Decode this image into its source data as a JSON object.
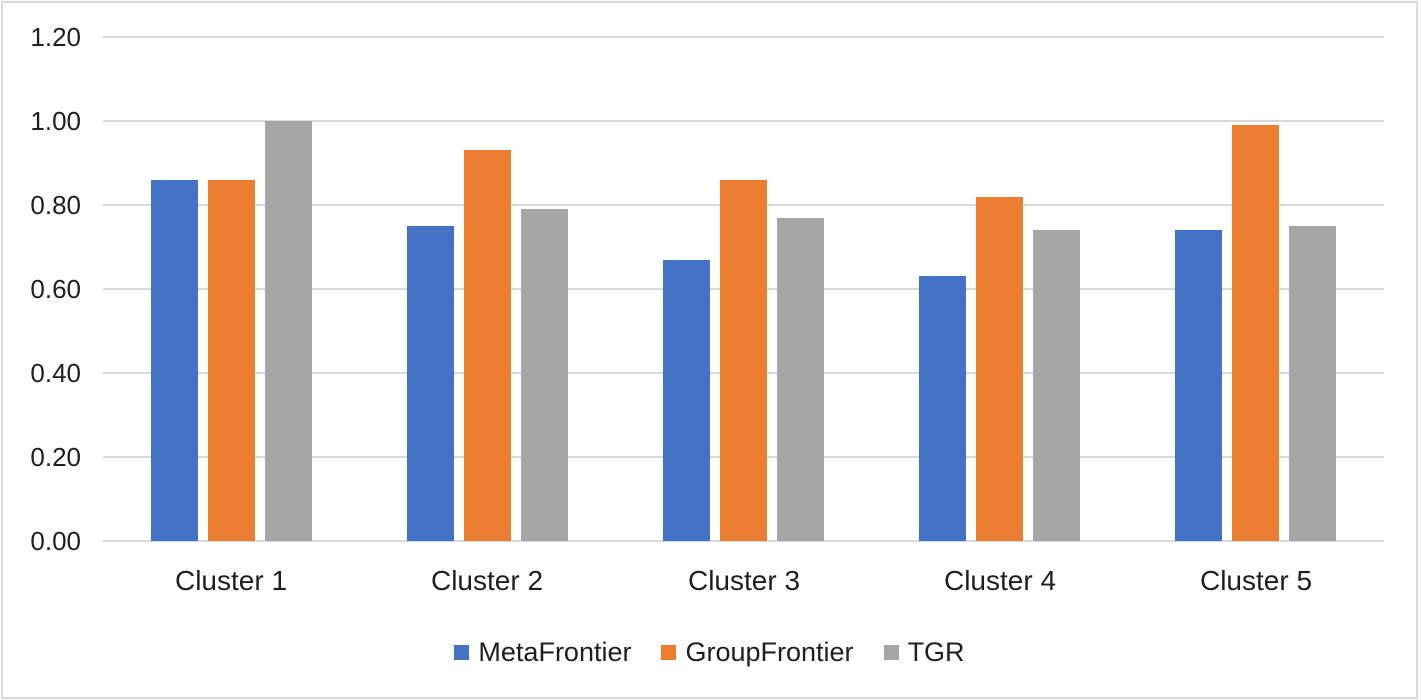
{
  "chart_data": {
    "type": "bar",
    "title": "",
    "xlabel": "",
    "ylabel": "",
    "categories": [
      "Cluster 1",
      "Cluster 2",
      "Cluster 3",
      "Cluster 4",
      "Cluster 5"
    ],
    "series": [
      {
        "name": "MetaFrontier",
        "color": "#4472C4",
        "values": [
          0.86,
          0.75,
          0.67,
          0.63,
          0.74
        ]
      },
      {
        "name": "GroupFrontier",
        "color": "#ED7D31",
        "values": [
          0.86,
          0.93,
          0.86,
          0.82,
          0.99
        ]
      },
      {
        "name": "TGR",
        "color": "#A5A5A5",
        "values": [
          1.0,
          0.79,
          0.77,
          0.74,
          0.75
        ]
      }
    ],
    "ylim": [
      0,
      1.2
    ],
    "ytick_step": 0.2,
    "ytick_labels": [
      "0.00",
      "0.20",
      "0.40",
      "0.60",
      "0.80",
      "1.00",
      "1.20"
    ],
    "grid": true,
    "legend_position": "bottom",
    "legend_entries": [
      "MetaFrontier",
      "GroupFrontier",
      "TGR"
    ]
  },
  "style_colors": {
    "gridline": "#d9d9d9",
    "frame_border": "#d9d9d9",
    "axis_text": "#1f1f1f",
    "background": "#ffffff"
  }
}
